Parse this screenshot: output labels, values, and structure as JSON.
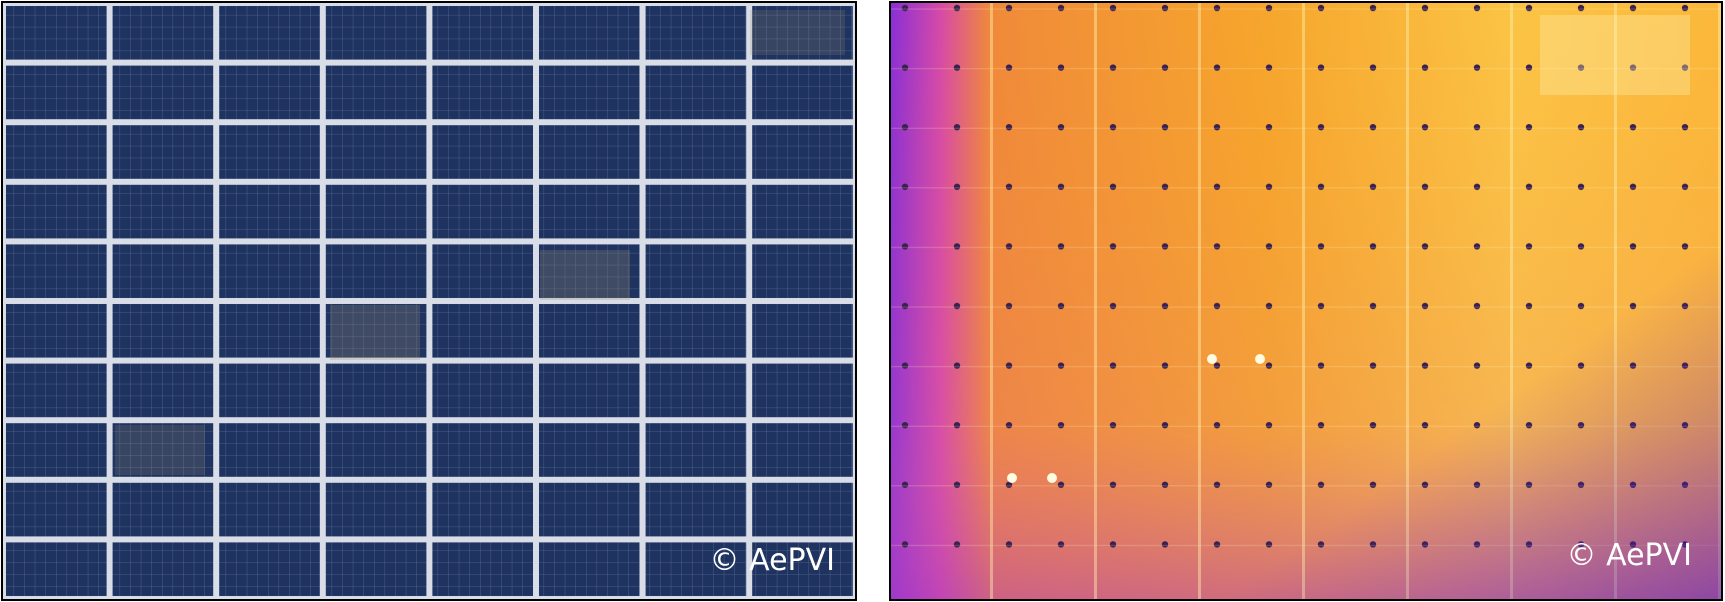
{
  "images": [
    {
      "watermark": "© AePVI"
    },
    {
      "watermark": "© AePVI"
    }
  ]
}
